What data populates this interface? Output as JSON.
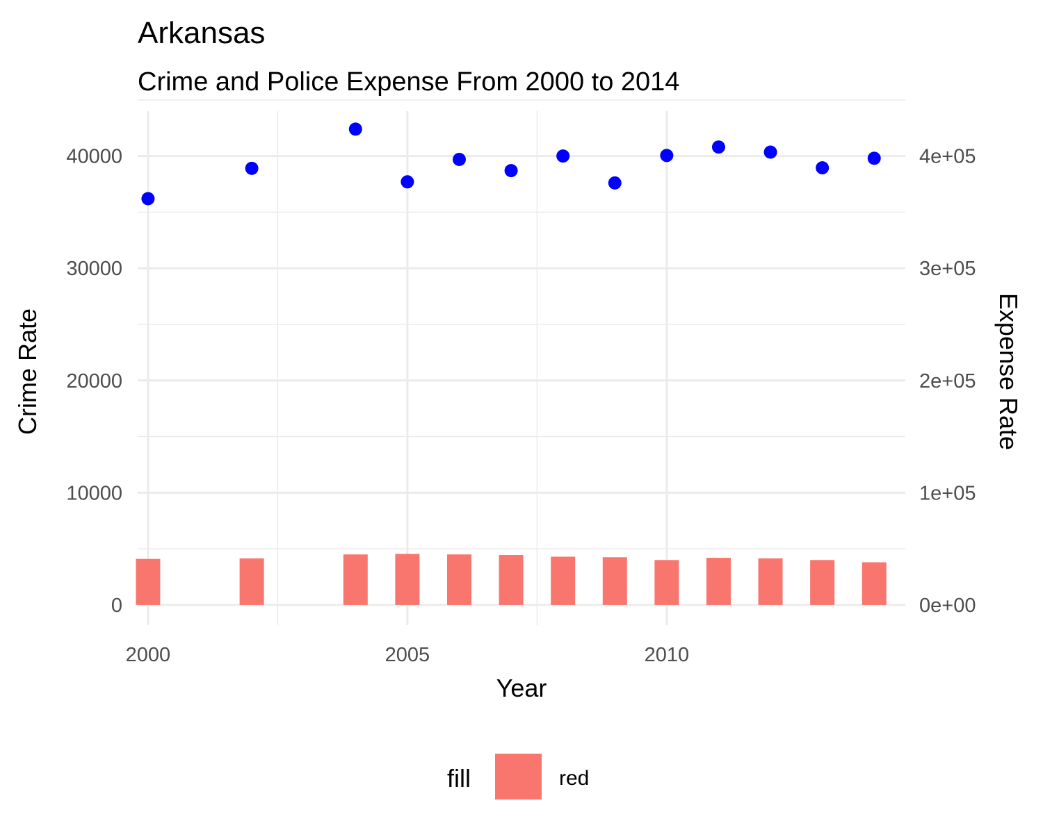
{
  "chart_data": {
    "type": "bar",
    "title": "Arkansas",
    "subtitle": "Crime and Police Expense From 2000 to 2014",
    "xlabel": "Year",
    "ylabel": "Crime Rate",
    "y2label": "Expense Rate",
    "xlim": [
      1999.8,
      2014.6
    ],
    "ylim": [
      -1800,
      44000
    ],
    "y2lim": [
      -18000,
      440000
    ],
    "x_ticks": [
      2000,
      2005,
      2010
    ],
    "x_tick_labels": [
      "2000",
      "2005",
      "2010"
    ],
    "y_ticks": [
      0,
      10000,
      20000,
      30000,
      40000
    ],
    "y_tick_labels": [
      "0",
      "10000",
      "20000",
      "30000",
      "40000"
    ],
    "y2_ticks": [
      0,
      100000,
      200000,
      300000,
      400000
    ],
    "y2_tick_labels": [
      "0e+00",
      "1e+05",
      "2e+05",
      "3e+05",
      "4e+05"
    ],
    "grid": true,
    "legend_position": "bottom",
    "legend_title": "fill",
    "colors": {
      "ylabel": "#ff0000",
      "y2label": "#0000ff",
      "bars": "#f8766d",
      "points": "#0000ff",
      "grid": "#ebebeb"
    },
    "series": [
      {
        "name": "red",
        "type": "bar",
        "axis": "left",
        "x": [
          2000,
          2002,
          2004,
          2005,
          2006,
          2007,
          2008,
          2009,
          2010,
          2011,
          2012,
          2013,
          2014
        ],
        "values": [
          4100,
          4150,
          4500,
          4550,
          4500,
          4450,
          4300,
          4250,
          4000,
          4200,
          4150,
          4000,
          3800
        ]
      },
      {
        "type": "scatter",
        "axis": "right",
        "x": [
          2000,
          2002,
          2004,
          2005,
          2006,
          2007,
          2008,
          2009,
          2010,
          2011,
          2012,
          2013,
          2014
        ],
        "values": [
          362000,
          389000,
          424000,
          377000,
          397000,
          387000,
          400000,
          376000,
          400500,
          408000,
          403500,
          389500,
          398000
        ]
      }
    ]
  }
}
